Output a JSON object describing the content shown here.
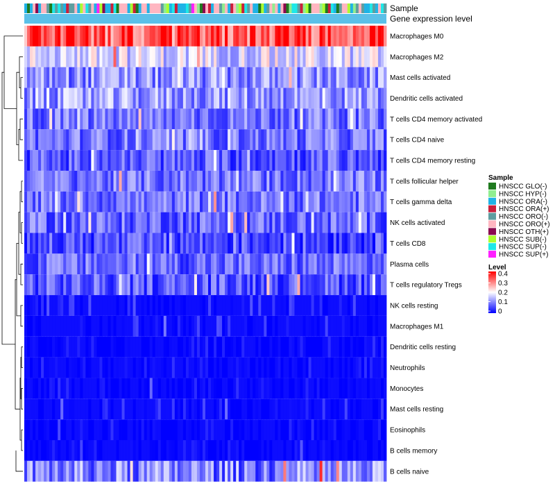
{
  "chart_data": {
    "type": "heatmap",
    "title": "",
    "annotation_tracks": [
      "Sample",
      "Gene expression level"
    ],
    "rows": [
      {
        "name": "Macrophages M0",
        "level": 0.33,
        "var": 0.09
      },
      {
        "name": "Macrophages M2",
        "level": 0.17,
        "var": 0.07
      },
      {
        "name": "Mast cells activated",
        "level": 0.11,
        "var": 0.07
      },
      {
        "name": "Dendritic cells activated",
        "level": 0.12,
        "var": 0.07
      },
      {
        "name": "T cells CD4 memory activated",
        "level": 0.09,
        "var": 0.06
      },
      {
        "name": "T cells CD4 naive",
        "level": 0.09,
        "var": 0.06
      },
      {
        "name": "T cells CD4 memory resting",
        "level": 0.07,
        "var": 0.06
      },
      {
        "name": "T cells follicular helper",
        "level": 0.09,
        "var": 0.06
      },
      {
        "name": "T cells gamma delta",
        "level": 0.09,
        "var": 0.06
      },
      {
        "name": "NK cells activated",
        "level": 0.08,
        "var": 0.06
      },
      {
        "name": "T cells CD8",
        "level": 0.06,
        "var": 0.06
      },
      {
        "name": "Plasma cells",
        "level": 0.08,
        "var": 0.06
      },
      {
        "name": "T cells regulatory  Tregs",
        "level": 0.07,
        "var": 0.06
      },
      {
        "name": "NK cells resting",
        "level": 0.03,
        "var": 0.04
      },
      {
        "name": "Macrophages M1",
        "level": 0.03,
        "var": 0.04
      },
      {
        "name": "Dendritic cells resting",
        "level": 0.01,
        "var": 0.03
      },
      {
        "name": "Neutrophils",
        "level": 0.01,
        "var": 0.03
      },
      {
        "name": "Monocytes",
        "level": 0.01,
        "var": 0.03
      },
      {
        "name": "Mast cells resting",
        "level": 0.02,
        "var": 0.04
      },
      {
        "name": "Eosinophils",
        "level": 0.01,
        "var": 0.03
      },
      {
        "name": "B cells memory",
        "level": 0.01,
        "var": 0.02
      },
      {
        "name": "B cells naive",
        "level": 0.1,
        "var": 0.08
      }
    ],
    "n_columns": 130,
    "sample_legend_title": "Sample",
    "samples": [
      {
        "name": "HNSCC GLO(-)",
        "color": "#1f7a1f"
      },
      {
        "name": "HNSCC HYP(-)",
        "color": "#90ee90"
      },
      {
        "name": "HNSCC ORA(-)",
        "color": "#1fb3e6"
      },
      {
        "name": "HNSCC ORA(+)",
        "color": "#cc1f3a"
      },
      {
        "name": "HNSCC ORO(-)",
        "color": "#5f9ea0"
      },
      {
        "name": "HNSCC ORO(+)",
        "color": "#ffb6c1"
      },
      {
        "name": "HNSCC OTH(+)",
        "color": "#8b0a50"
      },
      {
        "name": "HNSCC SUB(-)",
        "color": "#adff2f"
      },
      {
        "name": "HNSCC SUP(-)",
        "color": "#1ee8e8"
      },
      {
        "name": "HNSCC SUP(+)",
        "color": "#ff1fff"
      }
    ],
    "level_legend_title": "Level",
    "level_ticks": [
      "0.4",
      "0.3",
      "0.2",
      "0.1",
      "0"
    ],
    "color_scale": {
      "min": 0,
      "max": 0.4,
      "low": "#0000ff",
      "mid": "#ffffff",
      "high": "#ff0000",
      "mid_value": 0.2
    },
    "gene_expression_color": "#5bc0e8"
  }
}
